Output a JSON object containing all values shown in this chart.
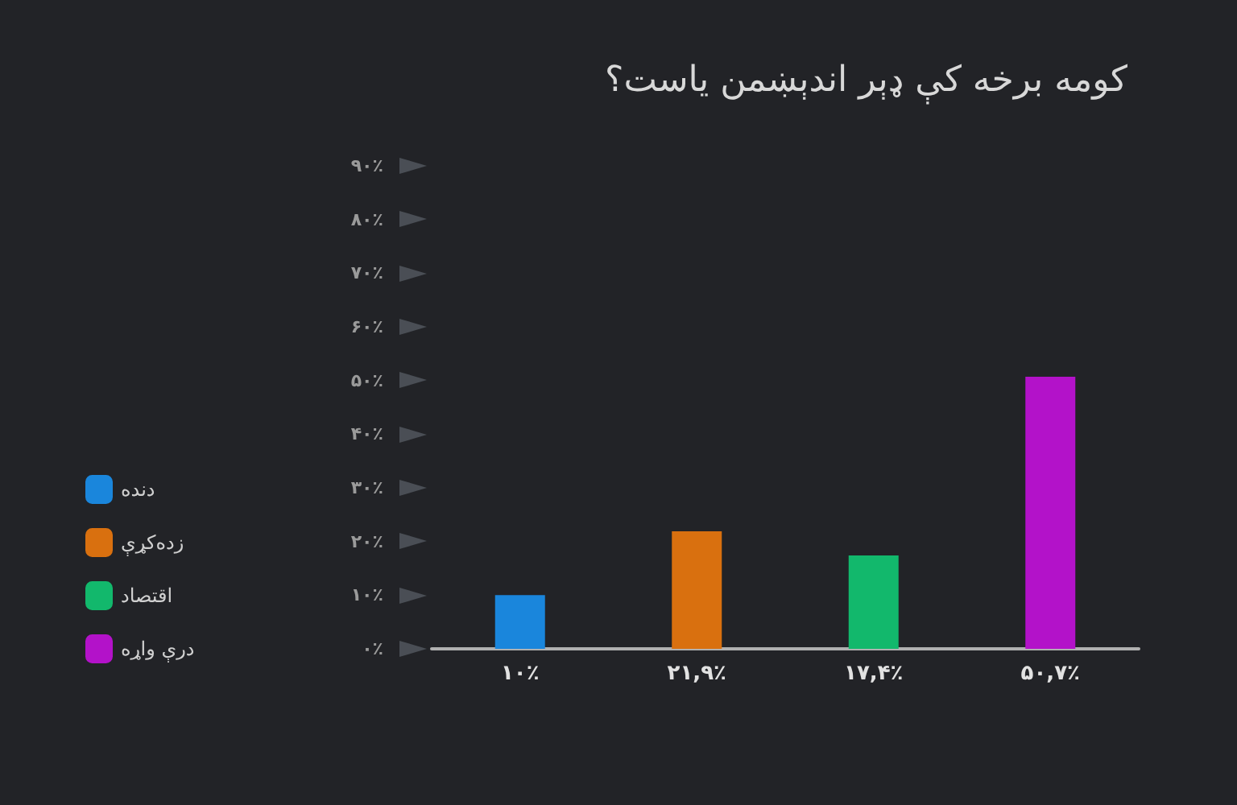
{
  "chart_data": {
    "type": "bar",
    "title": "کومه برخه کې ډېر اندېښمن یاست؟",
    "categories": [
      null,
      null,
      null,
      null
    ],
    "series": [
      {
        "name": "دنده",
        "color": "#1a86dc",
        "values": [
          10,
          null,
          null,
          null
        ],
        "value_labels": [
          "۱۰٪",
          null,
          null,
          null
        ]
      },
      {
        "name": "زده‌کړې",
        "color": "#d9700f",
        "values": [
          null,
          21.9,
          null,
          null
        ],
        "value_labels": [
          null,
          "۲۱,۹٪",
          null,
          null
        ]
      },
      {
        "name": "اقتصاد",
        "color": "#12b86c",
        "values": [
          null,
          null,
          17.4,
          null
        ],
        "value_labels": [
          null,
          null,
          "۱۷,۴٪",
          null
        ]
      },
      {
        "name": "درې واړه",
        "color": "#b312c9",
        "values": [
          null,
          null,
          null,
          50.7
        ],
        "value_labels": [
          null,
          null,
          null,
          "۵۰,۷٪"
        ]
      }
    ],
    "ylim": [
      0,
      90
    ],
    "yticks": [
      {
        "value": 0,
        "label": "۰٪"
      },
      {
        "value": 10,
        "label": "۱۰٪"
      },
      {
        "value": 20,
        "label": "۲۰٪"
      },
      {
        "value": 30,
        "label": "۳۰٪"
      },
      {
        "value": 40,
        "label": "۴۰٪"
      },
      {
        "value": 50,
        "label": "۵۰٪"
      },
      {
        "value": 60,
        "label": "۶۰٪"
      },
      {
        "value": 70,
        "label": "۷۰٪"
      },
      {
        "value": 80,
        "label": "۸۰٪"
      },
      {
        "value": 90,
        "label": "۹۰٪"
      }
    ],
    "grid": false,
    "legend": "left"
  }
}
